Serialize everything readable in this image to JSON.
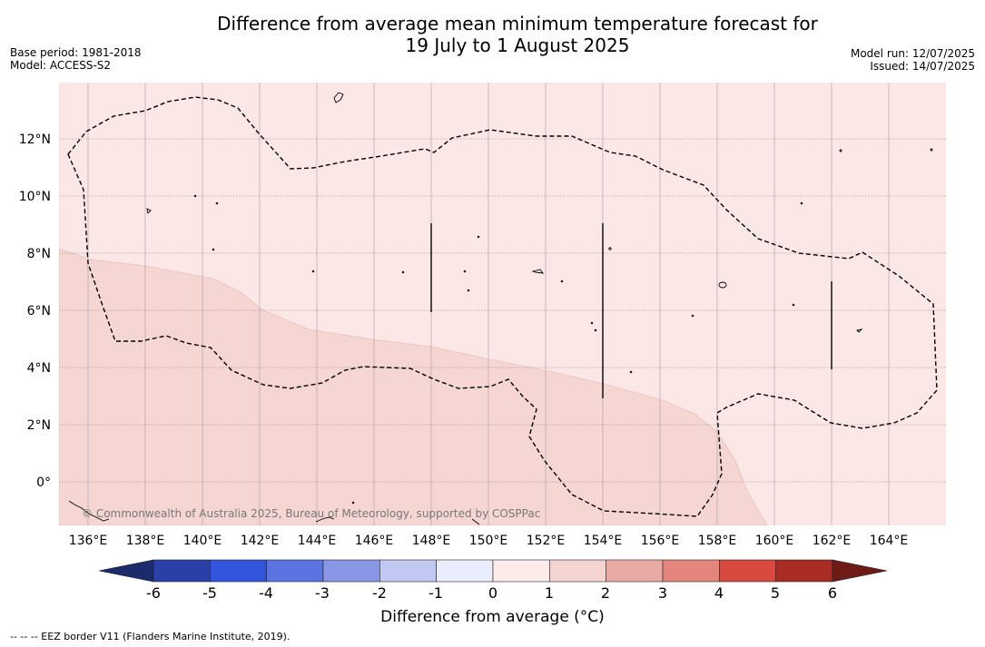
{
  "title": {
    "line1": "Difference from average mean minimum temperature forecast for",
    "line2": "19 July to 1 August 2025"
  },
  "meta_left": {
    "base_period": "Base period: 1981-2018",
    "model": "Model: ACCESS-S2"
  },
  "meta_right": {
    "model_run": "Model run: 12/07/2025",
    "issued": "Issued: 14/07/2025"
  },
  "map": {
    "latitude_labels": [
      "12°N",
      "10°N",
      "8°N",
      "6°N",
      "4°N",
      "2°N",
      "0°"
    ],
    "longitude_labels": [
      "136°E",
      "138°E",
      "140°E",
      "142°E",
      "144°E",
      "146°E",
      "148°E",
      "150°E",
      "152°E",
      "154°E",
      "156°E",
      "158°E",
      "160°E",
      "162°E",
      "164°E"
    ],
    "credit": "© Commonwealth of Australia 2025, Bureau of Meteorology, supported by COSPPac",
    "region_colors": {
      "zero_to_one": "#fbe8e6",
      "one_to_two": "#f5d6d3"
    }
  },
  "colorbar": {
    "title": "Difference from average (°C)",
    "ticks": [
      "-6",
      "-5",
      "-4",
      "-3",
      "-2",
      "-1",
      "0",
      "1",
      "2",
      "3",
      "4",
      "5",
      "6"
    ],
    "colors": [
      "#1b2a6b",
      "#2a3fa8",
      "#3354dc",
      "#5b74e0",
      "#8797e6",
      "#c1c9f2",
      "#e9ecfb",
      "#fbebe9",
      "#f4d4d1",
      "#eaaaa4",
      "#e3857c",
      "#d84a3f",
      "#a92c24",
      "#6e1a16"
    ]
  },
  "footnote": "-- -- -- EEZ border V11 (Flanders Marine Institute, 2019)."
}
